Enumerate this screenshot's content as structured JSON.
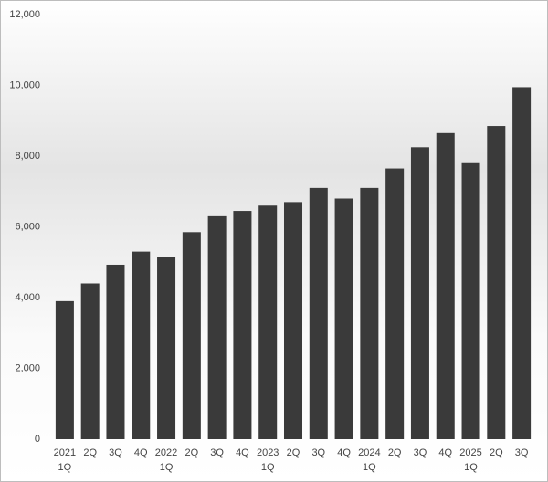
{
  "chart_data": {
    "type": "bar",
    "categories": [
      [
        "2021",
        "1Q"
      ],
      [
        "2Q"
      ],
      [
        "3Q"
      ],
      [
        "4Q"
      ],
      [
        "2022",
        "1Q"
      ],
      [
        "2Q"
      ],
      [
        "3Q"
      ],
      [
        "4Q"
      ],
      [
        "2023",
        "1Q"
      ],
      [
        "2Q"
      ],
      [
        "3Q"
      ],
      [
        "4Q"
      ],
      [
        "2024",
        "1Q"
      ],
      [
        "2Q"
      ],
      [
        "3Q"
      ],
      [
        "4Q"
      ],
      [
        "2025",
        "1Q"
      ],
      [
        "2Q"
      ],
      [
        "3Q"
      ]
    ],
    "values": [
      3900,
      4400,
      4930,
      5300,
      5150,
      5850,
      6300,
      6450,
      6600,
      6700,
      7100,
      6800,
      7100,
      7650,
      8250,
      8650,
      7800,
      8850,
      9950
    ],
    "color": "#3a3a3a",
    "ylim": [
      0,
      12000
    ],
    "yticks": [
      0,
      {
        "value": 2000,
        "label": "2,000"
      },
      {
        "value": 4000,
        "label": "4,000"
      },
      {
        "value": 6000,
        "label": "6,000"
      },
      {
        "value": 8000,
        "label": "8,000"
      },
      {
        "value": 10000,
        "label": "10,000"
      },
      {
        "value": 12000,
        "label": "12,000"
      }
    ],
    "grid": false
  }
}
